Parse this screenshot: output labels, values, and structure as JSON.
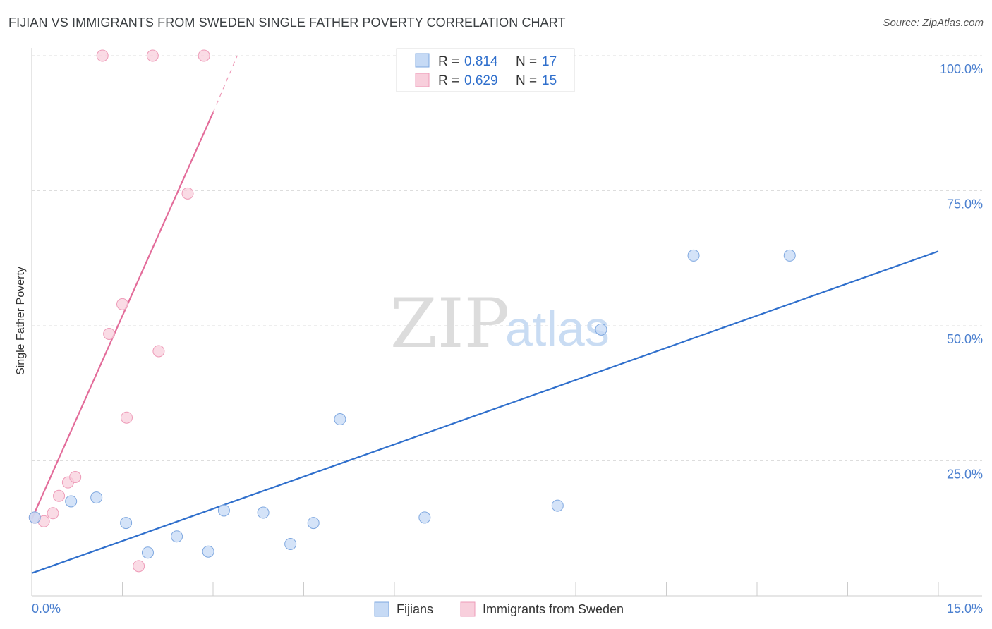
{
  "header": {
    "title": "FIJIAN VS IMMIGRANTS FROM SWEDEN SINGLE FATHER POVERTY CORRELATION CHART",
    "source": "Source: ZipAtlas.com"
  },
  "watermark": {
    "zip": "ZIP",
    "atlas": "atlas"
  },
  "colors": {
    "blue": "#2f6fcc",
    "blue_fill": "#c6daf5",
    "blue_stroke": "#7fa8e0",
    "pink": "#e36c9a",
    "pink_fill": "#f8cfdc",
    "pink_stroke": "#ee9bb8",
    "grid": "#dddddd"
  },
  "legend": {
    "rows": [
      {
        "r_label": "R =",
        "r_value": "0.814",
        "n_label": "N =",
        "n_value": "17"
      },
      {
        "r_label": "R =",
        "r_value": "0.629",
        "n_label": "N =",
        "n_value": "15"
      }
    ]
  },
  "bottom_legend": {
    "series1": "Fijians",
    "series2": "Immigrants from Sweden"
  },
  "chart_data": {
    "type": "scatter",
    "title": "FIJIAN VS IMMIGRANTS FROM SWEDEN SINGLE FATHER POVERTY CORRELATION CHART",
    "xlabel": "",
    "ylabel": "Single Father Poverty",
    "xlim": [
      0,
      15
    ],
    "ylim": [
      0,
      100
    ],
    "x_tick_labels": [
      "0.0%",
      "15.0%"
    ],
    "y_ticks": [
      25,
      50,
      75,
      100
    ],
    "y_tick_labels": [
      "25.0%",
      "50.0%",
      "75.0%",
      "100.0%"
    ],
    "series": [
      {
        "name": "Fijians",
        "r": 0.814,
        "n": 17,
        "x": [
          0.05,
          0.65,
          1.07,
          1.56,
          1.92,
          2.4,
          2.92,
          3.18,
          3.83,
          4.28,
          4.66,
          5.1,
          6.5,
          8.7,
          9.42,
          10.95,
          12.54
        ],
        "y": [
          14.5,
          17.5,
          18.2,
          13.5,
          8.0,
          11.0,
          8.2,
          15.8,
          15.4,
          9.6,
          13.5,
          32.7,
          14.5,
          16.7,
          49.3,
          63.0,
          63.0
        ],
        "trend": {
          "x": [
            0,
            15
          ],
          "y": [
            4.2,
            63.8
          ]
        }
      },
      {
        "name": "Immigrants from Sweden",
        "r": 0.629,
        "n": 15,
        "x": [
          0.05,
          0.2,
          0.35,
          0.45,
          0.6,
          0.72,
          1.17,
          1.28,
          1.5,
          1.57,
          1.77,
          2.0,
          2.1,
          2.85,
          2.58
        ],
        "y": [
          14.5,
          13.8,
          15.3,
          18.5,
          21.0,
          22.0,
          100,
          48.5,
          54.0,
          33.0,
          5.5,
          100,
          45.3,
          100,
          74.5
        ],
        "trend": {
          "x": [
            0,
            3.0
          ],
          "y": [
            14.2,
            89.5
          ]
        },
        "trend_dashed": {
          "x": [
            3.0,
            3.4
          ],
          "y": [
            89.5,
            100
          ]
        }
      }
    ]
  }
}
